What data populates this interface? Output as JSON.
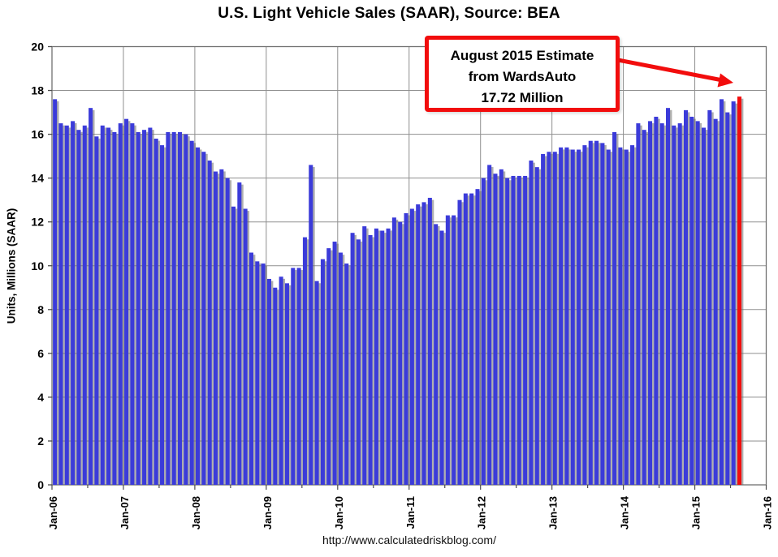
{
  "title": "U.S. Light Vehicle Sales (SAAR), Source: BEA",
  "footer_url": "http://www.calculatedriskblog.com/",
  "annotation": {
    "line1": "August 2015 Estimate",
    "line2": "from WardsAuto",
    "line3": "17.72 Million"
  },
  "chart_data": {
    "type": "bar",
    "title": "U.S. Light Vehicle Sales (SAAR), Source: BEA",
    "xlabel": "",
    "ylabel": "Units, Millions (SAAR)",
    "ylim": [
      0,
      20
    ],
    "ytick_step": 2,
    "grid": true,
    "legend": false,
    "x_unit": "month",
    "x_range": "Jan-2006 to Aug-2015",
    "x_tick_labels": [
      "Jan-06",
      "Jan-07",
      "Jan-08",
      "Jan-09",
      "Jan-10",
      "Jan-11",
      "Jan-12",
      "Jan-13",
      "Jan-14",
      "Jan-15",
      "Jan-16"
    ],
    "values_by_year": {
      "2006": [
        17.6,
        16.5,
        16.4,
        16.6,
        16.2,
        16.4,
        17.2,
        15.9,
        16.4,
        16.3,
        16.1,
        16.5
      ],
      "2007": [
        16.7,
        16.5,
        16.1,
        16.2,
        16.3,
        15.8,
        15.5,
        16.1,
        16.1,
        16.1,
        16.0,
        15.7
      ],
      "2008": [
        15.4,
        15.2,
        14.8,
        14.3,
        14.4,
        14.0,
        12.7,
        13.8,
        12.6,
        10.6,
        10.2,
        10.1
      ],
      "2009": [
        9.4,
        9.0,
        9.5,
        9.2,
        9.9,
        9.9,
        11.3,
        14.6,
        9.3,
        10.3,
        10.8,
        11.1
      ],
      "2010": [
        10.6,
        10.1,
        11.5,
        11.2,
        11.8,
        11.4,
        11.7,
        11.6,
        11.7,
        12.2,
        12.0,
        12.4
      ],
      "2011": [
        12.6,
        12.8,
        12.9,
        13.1,
        11.9,
        11.6,
        12.3,
        12.3,
        13.0,
        13.3,
        13.3,
        13.5
      ],
      "2012": [
        14.0,
        14.6,
        14.2,
        14.4,
        14.0,
        14.1,
        14.1,
        14.1,
        14.8,
        14.5,
        15.1,
        15.2
      ],
      "2013": [
        15.2,
        15.4,
        15.4,
        15.3,
        15.3,
        15.5,
        15.7,
        15.7,
        15.6,
        15.3,
        16.1,
        15.4
      ],
      "2014": [
        15.3,
        15.5,
        16.5,
        16.2,
        16.6,
        16.8,
        16.5,
        17.2,
        16.4,
        16.5,
        17.1,
        16.8
      ],
      "2015": [
        16.6,
        16.3,
        17.1,
        16.7,
        17.6,
        17.0,
        17.5,
        17.72
      ]
    },
    "highlight": {
      "month": "Aug-15",
      "index": 115,
      "value": 17.72
    },
    "colors": {
      "bar": "#3b3bd9",
      "bar_shadow": "rgba(110,110,110,0.55)",
      "highlight": "#f20d0d",
      "grid": "#8f8f8f",
      "border": "#707070",
      "axis": "#4d4d4d"
    }
  }
}
